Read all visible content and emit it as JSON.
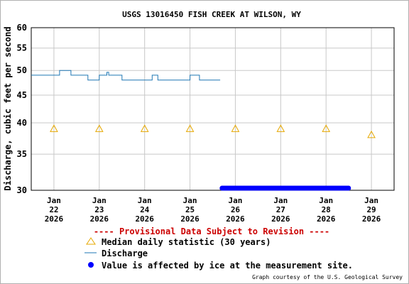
{
  "chart_data": {
    "type": "line",
    "title": "USGS 13016450 FISH CREEK AT WILSON, WY",
    "ylabel": "Discharge, cubic feet per second",
    "xlabel": "",
    "ylim": [
      30,
      60
    ],
    "y_scale": "log",
    "y_ticks": [
      "30",
      "35",
      "40",
      "45",
      "50",
      "55",
      "60"
    ],
    "x_ticks": [
      {
        "date": "2026-01-22",
        "line1": "Jan",
        "line2": "22",
        "line3": "2026"
      },
      {
        "date": "2026-01-23",
        "line1": "Jan",
        "line2": "23",
        "line3": "2026"
      },
      {
        "date": "2026-01-24",
        "line1": "Jan",
        "line2": "24",
        "line3": "2026"
      },
      {
        "date": "2026-01-25",
        "line1": "Jan",
        "line2": "25",
        "line3": "2026"
      },
      {
        "date": "2026-01-26",
        "line1": "Jan",
        "line2": "26",
        "line3": "2026"
      },
      {
        "date": "2026-01-27",
        "line1": "Jan",
        "line2": "27",
        "line3": "2026"
      },
      {
        "date": "2026-01-28",
        "line1": "Jan",
        "line2": "28",
        "line3": "2026"
      },
      {
        "date": "2026-01-29",
        "line1": "Jan",
        "line2": "29",
        "line3": "2026"
      }
    ],
    "grid": true,
    "series": [
      {
        "name": "Discharge",
        "color": "#1f77b4",
        "points": [
          {
            "x": "2026-01-21 12:00",
            "y": 49.0
          },
          {
            "x": "2026-01-22 03:00",
            "y": 49.0
          },
          {
            "x": "2026-01-22 03:00",
            "y": 50.0
          },
          {
            "x": "2026-01-22 09:00",
            "y": 50.0
          },
          {
            "x": "2026-01-22 09:00",
            "y": 49.0
          },
          {
            "x": "2026-01-22 18:00",
            "y": 49.0
          },
          {
            "x": "2026-01-22 18:00",
            "y": 48.0
          },
          {
            "x": "2026-01-23 00:00",
            "y": 48.0
          },
          {
            "x": "2026-01-23 00:00",
            "y": 49.0
          },
          {
            "x": "2026-01-23 04:00",
            "y": 49.0
          },
          {
            "x": "2026-01-23 04:00",
            "y": 49.6
          },
          {
            "x": "2026-01-23 05:00",
            "y": 49.6
          },
          {
            "x": "2026-01-23 05:00",
            "y": 49.0
          },
          {
            "x": "2026-01-23 12:00",
            "y": 49.0
          },
          {
            "x": "2026-01-23 12:00",
            "y": 48.0
          },
          {
            "x": "2026-01-24 04:00",
            "y": 48.0
          },
          {
            "x": "2026-01-24 04:00",
            "y": 49.0
          },
          {
            "x": "2026-01-24 07:00",
            "y": 49.0
          },
          {
            "x": "2026-01-24 07:00",
            "y": 48.0
          },
          {
            "x": "2026-01-25 00:00",
            "y": 48.0
          },
          {
            "x": "2026-01-25 00:00",
            "y": 49.0
          },
          {
            "x": "2026-01-25 05:00",
            "y": 49.0
          },
          {
            "x": "2026-01-25 05:00",
            "y": 48.0
          },
          {
            "x": "2026-01-25 16:00",
            "y": 48.0
          }
        ]
      }
    ],
    "median_daily": {
      "name": "Median daily statistic (30 years)",
      "color": "#e6a800",
      "points": [
        {
          "x": "2026-01-22",
          "y": 39.0
        },
        {
          "x": "2026-01-23",
          "y": 39.0
        },
        {
          "x": "2026-01-24",
          "y": 39.0
        },
        {
          "x": "2026-01-25",
          "y": 39.0
        },
        {
          "x": "2026-01-26",
          "y": 39.0
        },
        {
          "x": "2026-01-27",
          "y": 39.0
        },
        {
          "x": "2026-01-28",
          "y": 39.0
        },
        {
          "x": "2026-01-29",
          "y": 38.0
        }
      ]
    },
    "ice_affected": {
      "name": "Value is affected by ice at the measurement site.",
      "color": "#0000ff",
      "start": "2026-01-25 17:00",
      "end": "2026-01-28 12:00",
      "y": 30
    },
    "legend": {
      "placement": "bottom",
      "provisional": "---- Provisional Data Subject to Revision ----",
      "median_label": "Median daily statistic (30 years)",
      "discharge_label": "Discharge",
      "ice_label": "Value is affected by ice at the measurement site."
    },
    "credit": "Graph courtesy of the U.S. Geological Survey"
  },
  "colors": {
    "grid": "#c8c8c8",
    "frame": "#b0b0b0",
    "provisional": "#cc0000"
  }
}
